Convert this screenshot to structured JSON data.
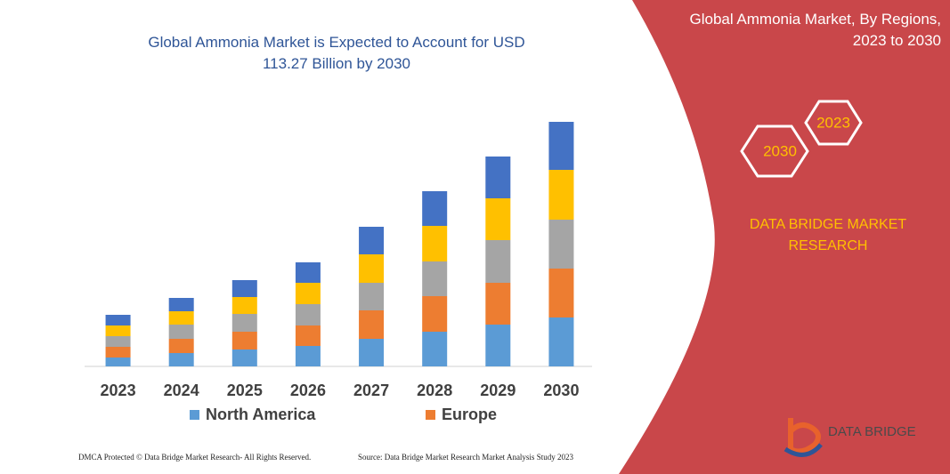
{
  "chart_data": {
    "type": "bar",
    "stacked": true,
    "title": "Global Ammonia Market is Expected to Account for USD 113.27 Billion by 2030",
    "categories": [
      "2023",
      "2024",
      "2025",
      "2026",
      "2027",
      "2028",
      "2029",
      "2030"
    ],
    "ylim": [
      0,
      300
    ],
    "series": [
      {
        "name": "North America",
        "color": "#5b9bd5",
        "values": [
          10,
          15,
          19,
          23,
          31,
          39,
          47,
          55
        ]
      },
      {
        "name": "Europe",
        "color": "#ed7d31",
        "values": [
          12,
          16,
          20,
          23,
          32,
          40,
          47,
          55
        ]
      },
      {
        "color": "#a5a5a5",
        "values": [
          12,
          16,
          20,
          24,
          31,
          39,
          48,
          55
        ]
      },
      {
        "color": "#ffc000",
        "values": [
          12,
          15,
          19,
          24,
          32,
          40,
          47,
          56
        ]
      },
      {
        "color": "#4472c4",
        "values": [
          12,
          15,
          19,
          23,
          31,
          39,
          47,
          54
        ]
      }
    ]
  },
  "panel": {
    "title": "Global Ammonia Market, By Regions, 2023 to 2030",
    "hex_labels": [
      "2023",
      "2030"
    ],
    "brand": "DATA BRIDGE MARKET RESEARCH",
    "logo_text": "DATA BRIDGE"
  },
  "footer": {
    "left": "DMCA Protected © Data Bridge Market Research-  All Rights Reserved.",
    "right": "Source: Data Bridge Market Research  Market Analysis Study 2023"
  }
}
